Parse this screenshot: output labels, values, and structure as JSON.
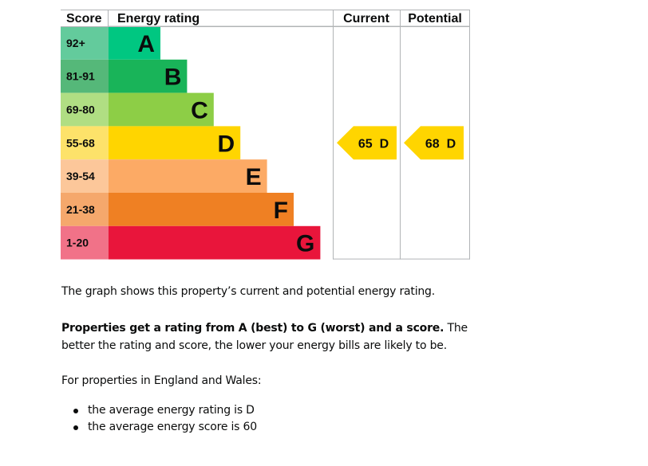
{
  "chart_data": {
    "type": "bar",
    "headers": {
      "score": "Score",
      "rating": "Energy rating",
      "current": "Current",
      "potential": "Potential"
    },
    "bands": [
      {
        "score_range": "92+",
        "letter": "A",
        "bar_color": "#00c781",
        "score_color": "#63cb9c"
      },
      {
        "score_range": "81-91",
        "letter": "B",
        "bar_color": "#19b459",
        "score_color": "#55b879"
      },
      {
        "score_range": "69-80",
        "letter": "C",
        "bar_color": "#8dce46",
        "score_color": "#b0de83"
      },
      {
        "score_range": "55-68",
        "letter": "D",
        "bar_color": "#ffd500",
        "score_color": "#fde26a"
      },
      {
        "score_range": "39-54",
        "letter": "E",
        "bar_color": "#fcaa65",
        "score_color": "#fcc79a"
      },
      {
        "score_range": "21-38",
        "letter": "F",
        "bar_color": "#ef8023",
        "score_color": "#f5a86c"
      },
      {
        "score_range": "1-20",
        "letter": "G",
        "bar_color": "#e9153b",
        "score_color": "#f17288"
      }
    ],
    "current": {
      "score": 65,
      "band": "D",
      "label": "65  D",
      "color": "#ffd500"
    },
    "potential": {
      "score": 68,
      "band": "D",
      "label": "68  D",
      "color": "#ffd500"
    }
  },
  "text": {
    "intro": "The graph shows this property’s current and potential energy rating.",
    "bold_lead": "Properties get a rating from A (best) to G (worst) and a score.",
    "explanation": " The better the rating and score, the lower your energy bills are likely to be.",
    "region_intro": "For properties in England and Wales:",
    "bullets": [
      "the average energy rating is D",
      "the average energy score is 60"
    ]
  }
}
